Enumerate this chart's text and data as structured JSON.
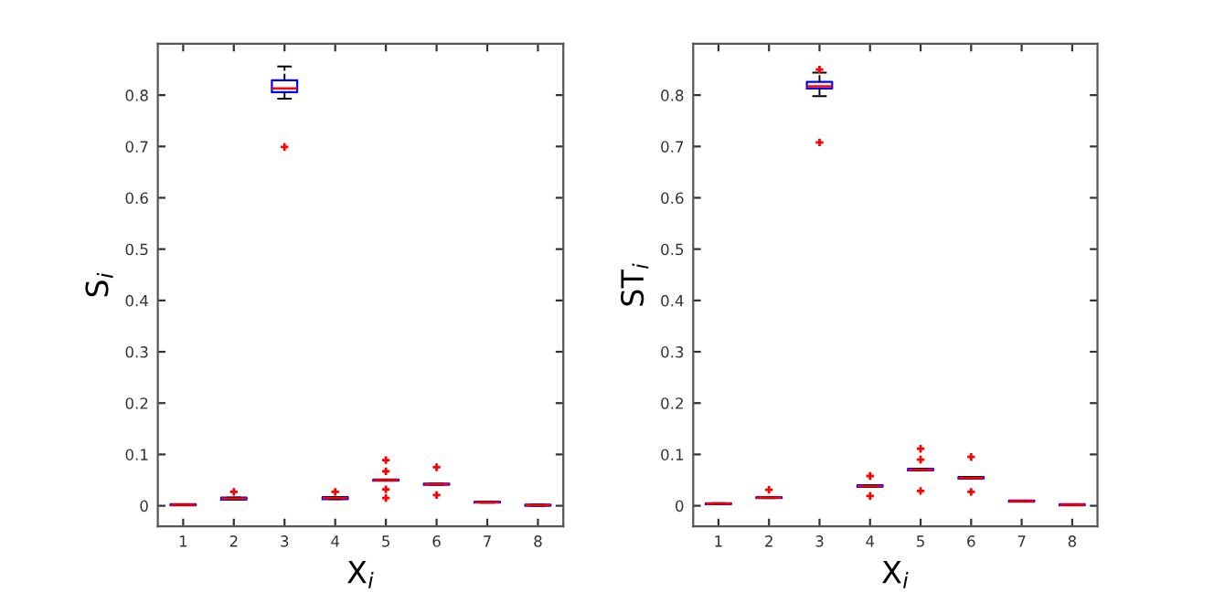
{
  "chart_data": [
    {
      "type": "box",
      "xlabel": "X$_{i}$",
      "ylabel": "S$_{i}$",
      "categories": [
        "1",
        "2",
        "3",
        "4",
        "5",
        "6",
        "7",
        "8"
      ],
      "ylim": [
        -0.04,
        0.9
      ],
      "yticks": [
        0,
        0.1,
        0.2,
        0.3,
        0.4,
        0.5,
        0.6,
        0.7,
        0.8
      ],
      "marker": "cross",
      "grid": false,
      "series": [
        {
          "color": "#0000ff",
          "boxes": [
            {
              "low": 0.001,
              "q1": 0.001,
              "median": 0.002,
              "q3": 0.003,
              "high": 0.003
            },
            {
              "low": 0.012,
              "q1": 0.012,
              "median": 0.014,
              "q3": 0.016,
              "high": 0.016,
              "outliers": [
                0.027
              ]
            },
            {
              "low": 0.793,
              "q1": 0.806,
              "median": 0.813,
              "q3": 0.829,
              "high": 0.856,
              "outliers": [
                0.699
              ]
            },
            {
              "low": 0.013,
              "q1": 0.013,
              "median": 0.015,
              "q3": 0.017,
              "high": 0.017,
              "outliers": [
                0.027
              ]
            },
            {
              "low": 0.049,
              "q1": 0.049,
              "median": 0.05,
              "q3": 0.051,
              "high": 0.051,
              "outliers": [
                0.015,
                0.032,
                0.067,
                0.089
              ]
            },
            {
              "low": 0.041,
              "q1": 0.041,
              "median": 0.042,
              "q3": 0.043,
              "high": 0.043,
              "outliers": [
                0.021,
                0.075
              ]
            },
            {
              "low": 0.006,
              "q1": 0.006,
              "median": 0.007,
              "q3": 0.008,
              "high": 0.008
            },
            {
              "low": 0.0,
              "q1": 0.0,
              "median": 0.001,
              "q3": 0.002,
              "high": 0.002
            }
          ]
        }
      ]
    },
    {
      "type": "box",
      "xlabel": "X$_{i}$",
      "ylabel": "ST$_{i}$",
      "categories": [
        "1",
        "2",
        "3",
        "4",
        "5",
        "6",
        "7",
        "8"
      ],
      "ylim": [
        -0.04,
        0.9
      ],
      "yticks": [
        0,
        0.1,
        0.2,
        0.3,
        0.4,
        0.5,
        0.6,
        0.7,
        0.8
      ],
      "marker": "cross",
      "grid": false,
      "series": [
        {
          "color": "#0000ff",
          "boxes": [
            {
              "low": 0.003,
              "q1": 0.003,
              "median": 0.004,
              "q3": 0.005,
              "high": 0.005
            },
            {
              "low": 0.015,
              "q1": 0.015,
              "median": 0.016,
              "q3": 0.017,
              "high": 0.017,
              "outliers": [
                0.031
              ]
            },
            {
              "low": 0.798,
              "q1": 0.813,
              "median": 0.817,
              "q3": 0.826,
              "high": 0.844,
              "outliers": [
                0.708,
                0.85
              ]
            },
            {
              "low": 0.037,
              "q1": 0.037,
              "median": 0.038,
              "q3": 0.04,
              "high": 0.04,
              "outliers": [
                0.019,
                0.058
              ]
            },
            {
              "low": 0.069,
              "q1": 0.069,
              "median": 0.07,
              "q3": 0.072,
              "high": 0.072,
              "outliers": [
                0.029,
                0.09,
                0.111
              ]
            },
            {
              "low": 0.053,
              "q1": 0.053,
              "median": 0.054,
              "q3": 0.056,
              "high": 0.056,
              "outliers": [
                0.027,
                0.095
              ]
            },
            {
              "low": 0.008,
              "q1": 0.008,
              "median": 0.009,
              "q3": 0.01,
              "high": 0.01
            },
            {
              "low": 0.001,
              "q1": 0.001,
              "median": 0.002,
              "q3": 0.003,
              "high": 0.003
            }
          ]
        }
      ]
    }
  ]
}
